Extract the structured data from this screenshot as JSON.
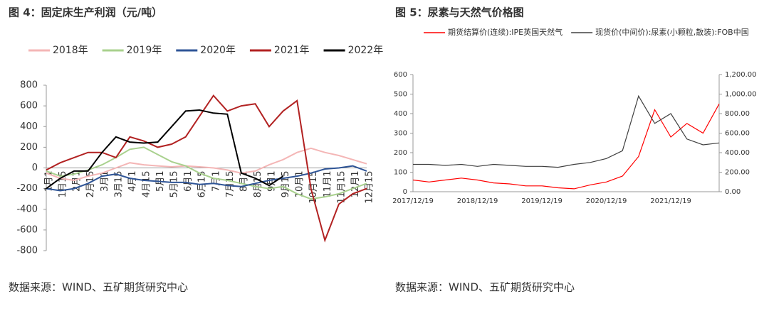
{
  "chart_data": [
    {
      "type": "line",
      "title": "图 4：固定床生产利润（元/吨）",
      "source": "数据来源：WIND、五矿期货研究中心",
      "categories": [
        "1月1",
        "1月15",
        "2月1",
        "2月15",
        "3月1",
        "3月15",
        "4月1",
        "4月15",
        "5月1",
        "5月15",
        "6月1",
        "6月15",
        "7月1",
        "7月15",
        "8月1",
        "8月15",
        "9月1",
        "9月15",
        "10月1",
        "10月15",
        "11月1",
        "11月15",
        "12月1",
        "12月15"
      ],
      "series": [
        {
          "name": "2018年",
          "color": "#f4b6b6",
          "values": [
            -50,
            -100,
            -120,
            -80,
            -50,
            0,
            50,
            30,
            20,
            10,
            20,
            10,
            0,
            -20,
            -50,
            -30,
            30,
            80,
            150,
            190,
            150,
            120,
            80,
            40
          ]
        },
        {
          "name": "2019年",
          "color": "#a9d18e",
          "values": [
            -30,
            -80,
            -60,
            -20,
            30,
            100,
            180,
            200,
            130,
            60,
            20,
            -50,
            -100,
            -120,
            -150,
            -180,
            -200,
            -180,
            -250,
            -300,
            -280,
            -250,
            -200,
            -150
          ]
        },
        {
          "name": "2020年",
          "color": "#2f5597",
          "values": [
            -200,
            -220,
            -200,
            -150,
            -80,
            -60,
            -100,
            -120,
            -130,
            -140,
            -140,
            -160,
            -150,
            -170,
            -180,
            -150,
            -120,
            -100,
            -80,
            -50,
            -10,
            0,
            20,
            -30
          ]
        },
        {
          "name": "2021年",
          "color": "#b22222",
          "values": [
            -20,
            50,
            100,
            150,
            150,
            100,
            300,
            260,
            200,
            230,
            300,
            500,
            700,
            550,
            600,
            620,
            400,
            550,
            650,
            -200,
            -700,
            -350,
            -250,
            -200
          ]
        },
        {
          "name": "2022年",
          "color": "#000000",
          "values": [
            -200,
            -100,
            -30,
            -30,
            150,
            300,
            250,
            240,
            250,
            400,
            550,
            560,
            530,
            520,
            -50,
            -100,
            -170,
            -80,
            null,
            null,
            null,
            null,
            null,
            null
          ]
        }
      ],
      "ylim": [
        -800,
        800
      ],
      "yticks": [
        -800,
        -600,
        -400,
        -200,
        0,
        200,
        400,
        600,
        800
      ],
      "legend": "top"
    },
    {
      "type": "line",
      "title": "图 5：尿素与天然气价格图",
      "source": "数据来源：WIND、五矿期货研究中心",
      "categories": [
        "2017/12/19",
        null,
        null,
        null,
        "2018/12/19",
        null,
        null,
        null,
        "2019/12/19",
        null,
        null,
        null,
        "2020/12/19",
        null,
        null,
        null,
        "2021/12/19",
        null,
        null,
        null
      ],
      "series": [
        {
          "name": "期货结算价(连续):IPE英国天然气",
          "color": "#ff0000",
          "values": [
            60,
            50,
            60,
            70,
            60,
            45,
            40,
            30,
            30,
            20,
            15,
            35,
            50,
            80,
            180,
            420,
            280,
            350,
            300,
            450
          ]
        },
        {
          "name": "现货价(中间价):尿素(小颗粒,散装):FOB中国",
          "color": "#404040",
          "axis": "y2",
          "values": [
            280,
            280,
            270,
            280,
            260,
            280,
            270,
            260,
            260,
            250,
            280,
            300,
            340,
            420,
            980,
            700,
            800,
            540,
            480,
            500
          ]
        }
      ],
      "ylim": [
        0,
        600
      ],
      "yticks": [
        0,
        100,
        200,
        300,
        400,
        500,
        600
      ],
      "y2lim": [
        0,
        1200
      ],
      "y2ticks": [
        {
          "value": 0,
          "label": "0.00"
        },
        {
          "value": 200,
          "label": "200.00"
        },
        {
          "value": 400,
          "label": "400.00"
        },
        {
          "value": 600,
          "label": "600.00"
        },
        {
          "value": 800,
          "label": "800.00"
        },
        {
          "value": 1000,
          "label": "1,000.00"
        },
        {
          "value": 1200,
          "label": "1,200.00"
        }
      ],
      "legend": "top"
    }
  ]
}
